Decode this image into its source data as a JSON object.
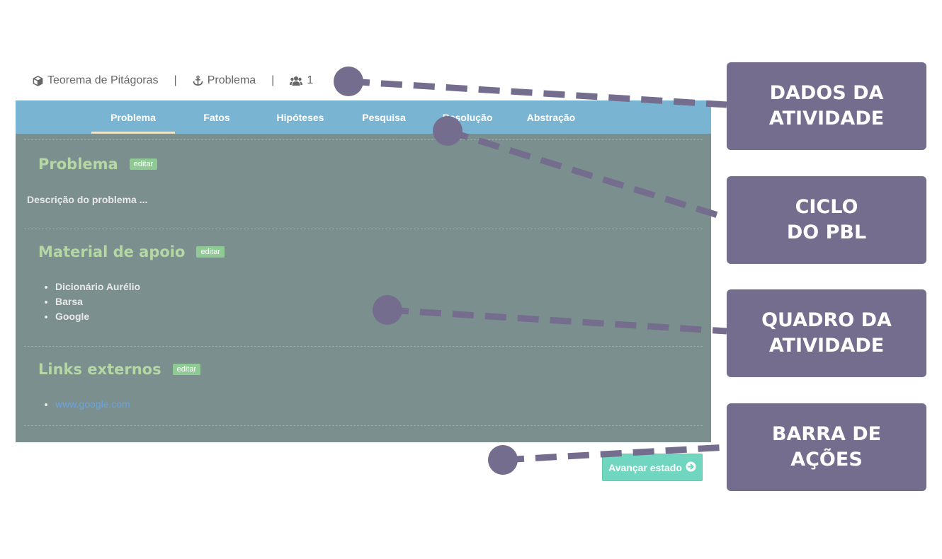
{
  "activity": {
    "title": "Teorema de Pitágoras",
    "separator": "|",
    "stage": "Problema",
    "members": "1"
  },
  "tabs": [
    {
      "label": "Problema",
      "active": true
    },
    {
      "label": "Fatos",
      "active": false
    },
    {
      "label": "Hipóteses",
      "active": false
    },
    {
      "label": "Pesquisa",
      "active": false
    },
    {
      "label": "Resolução",
      "active": false
    },
    {
      "label": "Abstração",
      "active": false
    }
  ],
  "sections": {
    "problem": {
      "title": "Problema",
      "edit": "editar",
      "description": "Descrição do problema ..."
    },
    "material": {
      "title": "Material de apoio",
      "edit": "editar",
      "items": [
        "Dicionário Aurélio",
        "Barsa",
        "Google"
      ]
    },
    "links": {
      "title": "Links externos",
      "edit": "editar",
      "items": [
        "www.google.com"
      ]
    }
  },
  "actions": {
    "advance_label": "Avançar estado"
  },
  "annotations": [
    {
      "line1": "DADOS DA",
      "line2": "ATIVIDADE"
    },
    {
      "line1": "CICLO",
      "line2": "DO PBL"
    },
    {
      "line1": "QUADRO DA",
      "line2": "ATIVIDADE"
    },
    {
      "line1": "BARRA DE",
      "line2": "AÇÕES"
    }
  ],
  "colors": {
    "tab_bar": "#79b4d3",
    "board": "#7b908e",
    "section_title": "#b5d7a4",
    "edit_badge": "#8fca95",
    "advance_button": "#71d6bf",
    "annotation": "#746d8e"
  }
}
